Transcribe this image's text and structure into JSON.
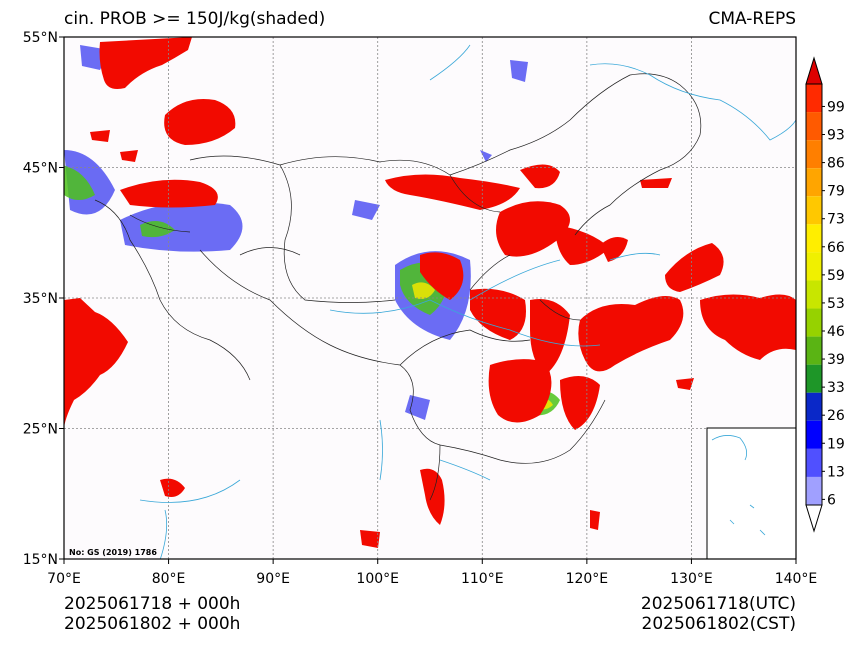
{
  "header": {
    "title_left": "cin. PROB >= 150J/kg(shaded)",
    "title_right": "CMA-REPS"
  },
  "map": {
    "lon_range": [
      70,
      140
    ],
    "lat_range": [
      15,
      55
    ],
    "lon_ticks": [
      "70°E",
      "80°E",
      "90°E",
      "100°E",
      "110°E",
      "120°E",
      "130°E",
      "140°E"
    ],
    "lat_ticks": [
      "55°N",
      "45°N",
      "35°N",
      "25°N",
      "15°N"
    ],
    "map_note": "No: GS (2019) 1786",
    "inset": "south-china-sea"
  },
  "colorbar": {
    "labels": [
      "99",
      "93",
      "86",
      "79",
      "73",
      "66",
      "59",
      "53",
      "46",
      "39",
      "33",
      "26",
      "19",
      "13",
      "6"
    ],
    "colors": [
      "#ff2a00",
      "#ff5a00",
      "#ff7f00",
      "#ffa500",
      "#ffc800",
      "#ffee00",
      "#f0f000",
      "#c8e600",
      "#96d200",
      "#5ab414",
      "#1e9628",
      "#0a28c8",
      "#0000ff",
      "#5050ff",
      "#a0a0ff"
    ]
  },
  "footer": {
    "left_line1": "2025061718  +  000h",
    "left_line2": "2025061802  +  000h",
    "right_line1": "2025061718(UTC)",
    "right_line2": "2025061802(CST)"
  }
}
